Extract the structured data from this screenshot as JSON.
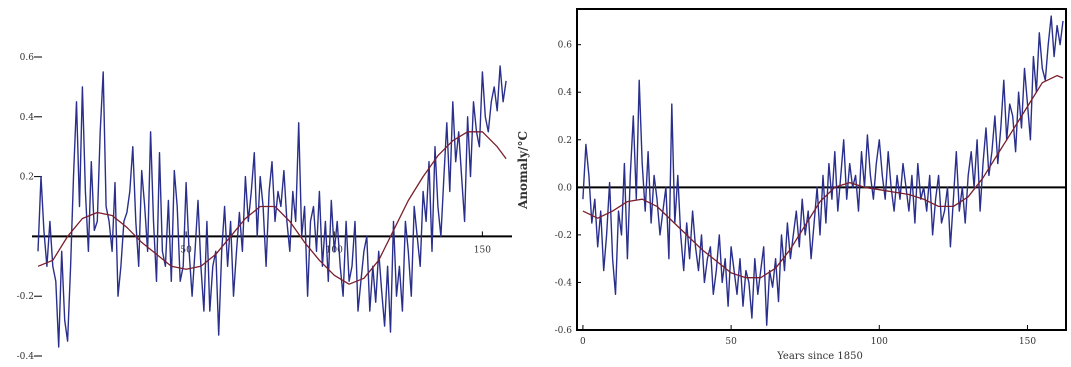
{
  "chart_data": [
    {
      "type": "line",
      "title": "",
      "xlabel": "",
      "ylabel": "",
      "xlim": [
        0,
        160
      ],
      "ylim": [
        -0.4,
        0.6
      ],
      "x_ticks": [
        {
          "value": 50,
          "label": "50"
        },
        {
          "value": 100,
          "label": "100"
        },
        {
          "value": 150,
          "label": "150"
        }
      ],
      "y_ticks": [
        {
          "value": 0.6,
          "label": "0.6"
        },
        {
          "value": 0.4,
          "label": "0.4"
        },
        {
          "value": 0.2,
          "label": "0.2"
        },
        {
          "value": -0.2,
          "label": "-0.2"
        },
        {
          "value": -0.4,
          "label": "-0.4"
        }
      ],
      "grid": false,
      "series": [
        {
          "role": "annual",
          "x": [
            0,
            1,
            2,
            3,
            4,
            5,
            6,
            7,
            8,
            9,
            10,
            11,
            12,
            13,
            14,
            15,
            16,
            17,
            18,
            19,
            20,
            21,
            22,
            23,
            24,
            25,
            26,
            27,
            28,
            29,
            30,
            31,
            32,
            33,
            34,
            35,
            36,
            37,
            38,
            39,
            40,
            41,
            42,
            43,
            44,
            45,
            46,
            47,
            48,
            49,
            50,
            51,
            52,
            53,
            54,
            55,
            56,
            57,
            58,
            59,
            60,
            61,
            62,
            63,
            64,
            65,
            66,
            67,
            68,
            69,
            70,
            71,
            72,
            73,
            74,
            75,
            76,
            77,
            78,
            79,
            80,
            81,
            82,
            83,
            84,
            85,
            86,
            87,
            88,
            89,
            90,
            91,
            92,
            93,
            94,
            95,
            96,
            97,
            98,
            99,
            100,
            101,
            102,
            103,
            104,
            105,
            106,
            107,
            108,
            109,
            110,
            111,
            112,
            113,
            114,
            115,
            116,
            117,
            118,
            119,
            120,
            121,
            122,
            123,
            124,
            125,
            126,
            127,
            128,
            129,
            130,
            131,
            132,
            133,
            134,
            135,
            136,
            137,
            138,
            139,
            140,
            141,
            142,
            143,
            144,
            145,
            146,
            147,
            148,
            149,
            150,
            151,
            152,
            153,
            154,
            155,
            156,
            157,
            158
          ],
          "values": [
            -0.05,
            0.2,
            0.02,
            -0.1,
            0.05,
            -0.1,
            -0.15,
            -0.37,
            -0.05,
            -0.28,
            -0.35,
            -0.1,
            0.2,
            0.45,
            0.1,
            0.5,
            0.15,
            -0.05,
            0.25,
            0.02,
            0.05,
            0.35,
            0.55,
            0.1,
            0.05,
            -0.05,
            0.18,
            -0.2,
            -0.1,
            0.05,
            0.08,
            0.15,
            0.3,
            0.05,
            -0.1,
            0.22,
            0.1,
            -0.05,
            0.35,
            0.05,
            -0.15,
            0.28,
            -0.05,
            -0.1,
            0.12,
            -0.15,
            0.22,
            0.1,
            -0.15,
            -0.1,
            0.18,
            -0.05,
            -0.2,
            -0.05,
            0.12,
            -0.1,
            -0.25,
            0.05,
            -0.25,
            -0.1,
            -0.05,
            -0.33,
            -0.05,
            0.1,
            -0.1,
            0.05,
            -0.2,
            -0.05,
            0.08,
            -0.05,
            0.2,
            0.05,
            0.15,
            0.28,
            0.0,
            0.2,
            0.1,
            -0.1,
            0.15,
            0.25,
            0.05,
            0.15,
            0.1,
            0.22,
            0.05,
            -0.05,
            0.15,
            0.05,
            0.38,
            0.0,
            0.1,
            -0.2,
            0.05,
            0.1,
            -0.05,
            0.15,
            -0.1,
            0.05,
            -0.15,
            0.12,
            -0.05,
            0.05,
            -0.1,
            -0.2,
            0.05,
            -0.15,
            -0.1,
            0.05,
            -0.25,
            -0.15,
            -0.05,
            0.0,
            -0.25,
            -0.1,
            -0.22,
            -0.05,
            -0.18,
            -0.3,
            -0.1,
            -0.32,
            0.05,
            -0.2,
            -0.1,
            -0.25,
            0.05,
            -0.05,
            -0.2,
            0.1,
            0.0,
            -0.1,
            0.15,
            0.05,
            0.25,
            -0.05,
            0.3,
            0.1,
            0.0,
            0.2,
            0.38,
            0.15,
            0.45,
            0.25,
            0.35,
            0.2,
            0.05,
            0.4,
            0.2,
            0.45,
            0.35,
            0.3,
            0.55,
            0.4,
            0.35,
            0.45,
            0.5,
            0.42,
            0.57,
            0.45,
            0.52
          ]
        },
        {
          "role": "smoothed",
          "x": [
            0,
            5,
            10,
            15,
            20,
            25,
            30,
            35,
            40,
            45,
            50,
            55,
            60,
            65,
            70,
            75,
            80,
            85,
            90,
            95,
            100,
            105,
            110,
            115,
            120,
            125,
            130,
            135,
            140,
            145,
            150,
            155,
            158
          ],
          "values": [
            -0.1,
            -0.08,
            0.0,
            0.06,
            0.08,
            0.07,
            0.03,
            -0.02,
            -0.06,
            -0.1,
            -0.11,
            -0.1,
            -0.06,
            0.0,
            0.06,
            0.1,
            0.1,
            0.05,
            -0.02,
            -0.08,
            -0.13,
            -0.16,
            -0.14,
            -0.08,
            0.02,
            0.12,
            0.2,
            0.27,
            0.32,
            0.35,
            0.35,
            0.3,
            0.26
          ]
        }
      ]
    },
    {
      "type": "line",
      "title": "",
      "xlabel": "Years since 1850",
      "ylabel": "Anomaly/°C",
      "xlim": [
        -2,
        163
      ],
      "ylim": [
        -0.6,
        0.75
      ],
      "x_ticks": [
        {
          "value": 0,
          "label": "0"
        },
        {
          "value": 50,
          "label": "50"
        },
        {
          "value": 100,
          "label": "100"
        },
        {
          "value": 150,
          "label": "150"
        }
      ],
      "y_ticks": [
        {
          "value": 0.6,
          "label": "0.6"
        },
        {
          "value": 0.4,
          "label": "0.4"
        },
        {
          "value": 0.2,
          "label": "0.2"
        },
        {
          "value": 0.0,
          "label": "0.0"
        },
        {
          "value": -0.2,
          "label": "-0.2"
        },
        {
          "value": -0.4,
          "label": "-0.4"
        },
        {
          "value": -0.6,
          "label": "-0.6"
        }
      ],
      "grid": false,
      "series": [
        {
          "role": "annual",
          "x": [
            0,
            1,
            2,
            3,
            4,
            5,
            6,
            7,
            8,
            9,
            10,
            11,
            12,
            13,
            14,
            15,
            16,
            17,
            18,
            19,
            20,
            21,
            22,
            23,
            24,
            25,
            26,
            27,
            28,
            29,
            30,
            31,
            32,
            33,
            34,
            35,
            36,
            37,
            38,
            39,
            40,
            41,
            42,
            43,
            44,
            45,
            46,
            47,
            48,
            49,
            50,
            51,
            52,
            53,
            54,
            55,
            56,
            57,
            58,
            59,
            60,
            61,
            62,
            63,
            64,
            65,
            66,
            67,
            68,
            69,
            70,
            71,
            72,
            73,
            74,
            75,
            76,
            77,
            78,
            79,
            80,
            81,
            82,
            83,
            84,
            85,
            86,
            87,
            88,
            89,
            90,
            91,
            92,
            93,
            94,
            95,
            96,
            97,
            98,
            99,
            100,
            101,
            102,
            103,
            104,
            105,
            106,
            107,
            108,
            109,
            110,
            111,
            112,
            113,
            114,
            115,
            116,
            117,
            118,
            119,
            120,
            121,
            122,
            123,
            124,
            125,
            126,
            127,
            128,
            129,
            130,
            131,
            132,
            133,
            134,
            135,
            136,
            137,
            138,
            139,
            140,
            141,
            142,
            143,
            144,
            145,
            146,
            147,
            148,
            149,
            150,
            151,
            152,
            153,
            154,
            155,
            156,
            157,
            158,
            159,
            160,
            161,
            162
          ],
          "values": [
            -0.05,
            0.18,
            0.05,
            -0.15,
            -0.05,
            -0.25,
            -0.1,
            -0.35,
            -0.2,
            0.02,
            -0.3,
            -0.45,
            -0.1,
            -0.2,
            0.1,
            -0.3,
            0.05,
            0.3,
            -0.05,
            0.45,
            0.1,
            -0.1,
            0.15,
            -0.15,
            0.05,
            -0.05,
            -0.2,
            -0.1,
            0.0,
            -0.3,
            0.35,
            -0.15,
            0.05,
            -0.2,
            -0.35,
            -0.15,
            -0.3,
            -0.1,
            -0.25,
            -0.35,
            -0.2,
            -0.4,
            -0.3,
            -0.25,
            -0.45,
            -0.35,
            -0.2,
            -0.4,
            -0.3,
            -0.5,
            -0.25,
            -0.35,
            -0.45,
            -0.3,
            -0.5,
            -0.35,
            -0.4,
            -0.55,
            -0.3,
            -0.45,
            -0.35,
            -0.25,
            -0.58,
            -0.35,
            -0.42,
            -0.3,
            -0.48,
            -0.2,
            -0.35,
            -0.15,
            -0.3,
            -0.2,
            -0.1,
            -0.25,
            -0.05,
            -0.2,
            -0.1,
            -0.3,
            -0.15,
            0.0,
            -0.2,
            0.05,
            -0.15,
            0.1,
            -0.05,
            0.15,
            -0.1,
            0.05,
            0.2,
            -0.05,
            0.1,
            0.0,
            0.05,
            -0.1,
            0.15,
            0.0,
            0.22,
            0.05,
            -0.05,
            0.1,
            0.2,
            0.05,
            -0.05,
            0.15,
            0.0,
            -0.1,
            0.05,
            -0.05,
            0.1,
            0.0,
            -0.1,
            0.05,
            -0.15,
            0.1,
            -0.05,
            0.0,
            -0.1,
            0.05,
            -0.2,
            -0.05,
            0.05,
            -0.15,
            -0.1,
            0.0,
            -0.25,
            -0.05,
            0.15,
            -0.1,
            0.0,
            -0.15,
            0.05,
            0.15,
            0.0,
            0.2,
            -0.1,
            0.1,
            0.25,
            0.05,
            0.15,
            0.3,
            0.1,
            0.25,
            0.45,
            0.2,
            0.35,
            0.3,
            0.15,
            0.4,
            0.25,
            0.5,
            0.35,
            0.2,
            0.55,
            0.4,
            0.65,
            0.5,
            0.45,
            0.6,
            0.72,
            0.55,
            0.68,
            0.6,
            0.7
          ]
        },
        {
          "role": "smoothed",
          "x": [
            0,
            5,
            10,
            15,
            20,
            25,
            30,
            35,
            40,
            45,
            50,
            55,
            60,
            65,
            70,
            75,
            80,
            85,
            90,
            95,
            100,
            105,
            110,
            115,
            120,
            125,
            130,
            135,
            140,
            145,
            150,
            155,
            160,
            162
          ],
          "values": [
            -0.1,
            -0.13,
            -0.1,
            -0.06,
            -0.05,
            -0.08,
            -0.14,
            -0.2,
            -0.26,
            -0.31,
            -0.36,
            -0.38,
            -0.38,
            -0.34,
            -0.26,
            -0.16,
            -0.06,
            0.0,
            0.02,
            0.0,
            -0.01,
            -0.02,
            -0.03,
            -0.05,
            -0.08,
            -0.08,
            -0.04,
            0.04,
            0.14,
            0.24,
            0.34,
            0.44,
            0.47,
            0.46
          ]
        }
      ]
    }
  ],
  "colors": {
    "annual": "#2a2f8c",
    "smoothed": "#7a1f2b",
    "axis": "#000000",
    "tick_text": "#333333"
  }
}
